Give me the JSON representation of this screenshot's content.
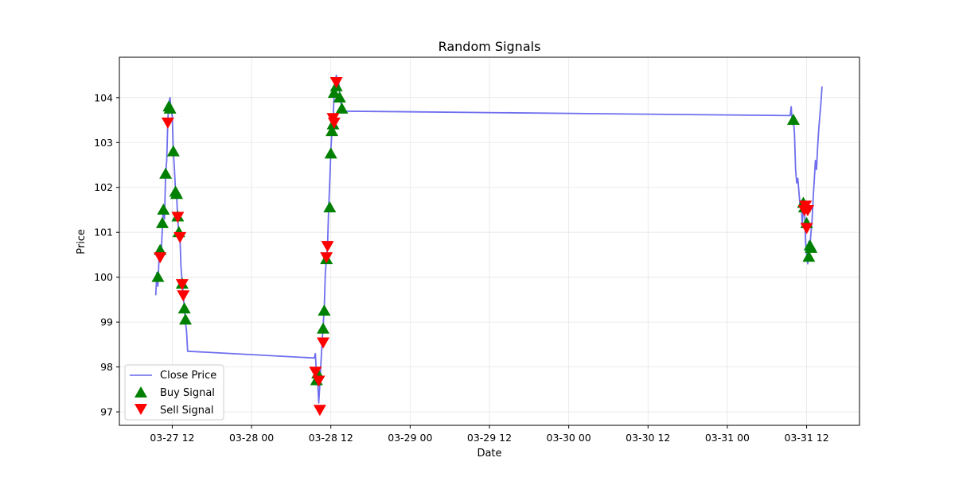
{
  "chart_data": {
    "type": "line",
    "title": "Random Signals",
    "xlabel": "Date",
    "ylabel": "Price",
    "x_ticks": [
      {
        "value": "2024-03-27 12:00",
        "label": "03-27 12"
      },
      {
        "value": "2024-03-28 00:00",
        "label": "03-28 00"
      },
      {
        "value": "2024-03-28 12:00",
        "label": "03-28 12"
      },
      {
        "value": "2024-03-29 00:00",
        "label": "03-29 00"
      },
      {
        "value": "2024-03-29 12:00",
        "label": "03-29 12"
      },
      {
        "value": "2024-03-30 00:00",
        "label": "03-30 00"
      },
      {
        "value": "2024-03-30 12:00",
        "label": "03-30 12"
      },
      {
        "value": "2024-03-31 00:00",
        "label": "03-31 00"
      },
      {
        "value": "2024-03-31 12:00",
        "label": "03-31 12"
      }
    ],
    "y_ticks": [
      97,
      98,
      99,
      100,
      101,
      102,
      103,
      104
    ],
    "xlim": [
      "2024-03-27 04:00",
      "2024-03-31 20:00"
    ],
    "ylim": [
      96.7,
      104.9
    ],
    "grid": true,
    "legend_position": "lower-left",
    "colors": {
      "close_price": "#6666ee",
      "buy_signal": "#008000",
      "sell_signal": "#ff0000"
    },
    "series": [
      {
        "name": "Close Price",
        "kind": "line",
        "points": [
          [
            "2024-03-27 09:30",
            99.6
          ],
          [
            "2024-03-27 09:40",
            100.1
          ],
          [
            "2024-03-27 09:50",
            99.8
          ],
          [
            "2024-03-27 10:00",
            100.4
          ],
          [
            "2024-03-27 10:10",
            100.6
          ],
          [
            "2024-03-27 10:20",
            100.5
          ],
          [
            "2024-03-27 10:30",
            101.1
          ],
          [
            "2024-03-27 10:40",
            101.6
          ],
          [
            "2024-03-27 10:50",
            101.3
          ],
          [
            "2024-03-27 11:00",
            102.3
          ],
          [
            "2024-03-27 11:10",
            102.6
          ],
          [
            "2024-03-27 11:20",
            103.5
          ],
          [
            "2024-03-27 11:30",
            103.9
          ],
          [
            "2024-03-27 11:40",
            104.0
          ],
          [
            "2024-03-27 11:50",
            103.7
          ],
          [
            "2024-03-27 12:00",
            103.6
          ],
          [
            "2024-03-27 12:10",
            102.8
          ],
          [
            "2024-03-27 12:20",
            102.4
          ],
          [
            "2024-03-27 12:30",
            101.9
          ],
          [
            "2024-03-27 12:40",
            101.8
          ],
          [
            "2024-03-27 12:50",
            101.3
          ],
          [
            "2024-03-27 13:00",
            101.0
          ],
          [
            "2024-03-27 13:10",
            100.9
          ],
          [
            "2024-03-27 13:20",
            100.2
          ],
          [
            "2024-03-27 13:30",
            99.9
          ],
          [
            "2024-03-27 13:40",
            99.6
          ],
          [
            "2024-03-27 13:50",
            99.3
          ],
          [
            "2024-03-27 14:00",
            99.0
          ],
          [
            "2024-03-27 14:10",
            98.8
          ],
          [
            "2024-03-27 14:20",
            98.35
          ],
          [
            "2024-03-28 09:30",
            98.2
          ],
          [
            "2024-03-28 09:40",
            98.3
          ],
          [
            "2024-03-28 09:50",
            97.8
          ],
          [
            "2024-03-28 10:00",
            97.7
          ],
          [
            "2024-03-28 10:10",
            97.2
          ],
          [
            "2024-03-28 10:20",
            97.6
          ],
          [
            "2024-03-28 10:30",
            98.1
          ],
          [
            "2024-03-28 10:40",
            98.5
          ],
          [
            "2024-03-28 10:50",
            98.9
          ],
          [
            "2024-03-28 11:00",
            99.3
          ],
          [
            "2024-03-28 11:10",
            100.1
          ],
          [
            "2024-03-28 11:20",
            100.4
          ],
          [
            "2024-03-28 11:30",
            100.7
          ],
          [
            "2024-03-28 11:40",
            101.5
          ],
          [
            "2024-03-28 11:50",
            102.1
          ],
          [
            "2024-03-28 12:00",
            102.8
          ],
          [
            "2024-03-28 12:10",
            103.3
          ],
          [
            "2024-03-28 12:20",
            103.5
          ],
          [
            "2024-03-28 12:30",
            104.1
          ],
          [
            "2024-03-28 12:40",
            104.2
          ],
          [
            "2024-03-28 12:50",
            104.5
          ],
          [
            "2024-03-28 13:00",
            104.3
          ],
          [
            "2024-03-28 13:10",
            104.4
          ],
          [
            "2024-03-28 13:20",
            104.1
          ],
          [
            "2024-03-28 13:30",
            103.9
          ],
          [
            "2024-03-28 13:40",
            103.75
          ],
          [
            "2024-03-28 13:50",
            103.7
          ],
          [
            "2024-03-31 09:30",
            103.6
          ],
          [
            "2024-03-31 09:40",
            103.8
          ],
          [
            "2024-03-31 09:50",
            103.4
          ],
          [
            "2024-03-31 10:00",
            103.5
          ],
          [
            "2024-03-31 10:10",
            103.2
          ],
          [
            "2024-03-31 10:20",
            102.4
          ],
          [
            "2024-03-31 10:30",
            102.1
          ],
          [
            "2024-03-31 10:40",
            102.2
          ],
          [
            "2024-03-31 10:50",
            101.9
          ],
          [
            "2024-03-31 11:00",
            101.6
          ],
          [
            "2024-03-31 11:10",
            101.7
          ],
          [
            "2024-03-31 11:20",
            101.2
          ],
          [
            "2024-03-31 11:30",
            101.5
          ],
          [
            "2024-03-31 11:40",
            101.6
          ],
          [
            "2024-03-31 11:50",
            100.8
          ],
          [
            "2024-03-31 12:00",
            100.5
          ],
          [
            "2024-03-31 12:10",
            100.3
          ],
          [
            "2024-03-31 12:20",
            100.8
          ],
          [
            "2024-03-31 12:30",
            100.7
          ],
          [
            "2024-03-31 12:40",
            101.0
          ],
          [
            "2024-03-31 12:50",
            101.3
          ],
          [
            "2024-03-31 13:00",
            101.8
          ],
          [
            "2024-03-31 13:10",
            102.2
          ],
          [
            "2024-03-31 13:20",
            102.6
          ],
          [
            "2024-03-31 13:30",
            102.4
          ],
          [
            "2024-03-31 13:40",
            102.9
          ],
          [
            "2024-03-31 13:50",
            103.3
          ],
          [
            "2024-03-31 14:00",
            103.6
          ],
          [
            "2024-03-31 14:10",
            103.9
          ],
          [
            "2024-03-31 14:20",
            104.25
          ]
        ]
      },
      {
        "name": "Buy Signal",
        "kind": "marker-up",
        "points": [
          [
            "2024-03-27 09:50",
            100.0
          ],
          [
            "2024-03-27 10:10",
            100.6
          ],
          [
            "2024-03-27 10:30",
            101.2
          ],
          [
            "2024-03-27 10:40",
            101.5
          ],
          [
            "2024-03-27 11:00",
            102.3
          ],
          [
            "2024-03-27 11:30",
            103.8
          ],
          [
            "2024-03-27 11:40",
            103.75
          ],
          [
            "2024-03-27 12:10",
            102.8
          ],
          [
            "2024-03-27 12:30",
            101.9
          ],
          [
            "2024-03-27 12:40",
            101.85
          ],
          [
            "2024-03-27 12:50",
            101.35
          ],
          [
            "2024-03-27 13:00",
            101.0
          ],
          [
            "2024-03-27 13:30",
            99.85
          ],
          [
            "2024-03-27 13:50",
            99.3
          ],
          [
            "2024-03-27 14:00",
            99.05
          ],
          [
            "2024-03-28 09:50",
            97.7
          ],
          [
            "2024-03-28 10:00",
            97.85
          ],
          [
            "2024-03-28 10:50",
            98.85
          ],
          [
            "2024-03-28 11:00",
            99.25
          ],
          [
            "2024-03-28 11:20",
            100.4
          ],
          [
            "2024-03-28 11:50",
            101.55
          ],
          [
            "2024-03-28 12:00",
            102.75
          ],
          [
            "2024-03-28 12:10",
            103.25
          ],
          [
            "2024-03-28 12:20",
            103.4
          ],
          [
            "2024-03-28 12:30",
            104.1
          ],
          [
            "2024-03-28 12:50",
            104.25
          ],
          [
            "2024-03-28 13:20",
            104.0
          ],
          [
            "2024-03-28 13:40",
            103.75
          ],
          [
            "2024-03-31 10:00",
            103.5
          ],
          [
            "2024-03-31 11:30",
            101.65
          ],
          [
            "2024-03-31 11:40",
            101.55
          ],
          [
            "2024-03-31 12:00",
            101.2
          ],
          [
            "2024-03-31 12:20",
            100.45
          ],
          [
            "2024-03-31 12:30",
            100.7
          ],
          [
            "2024-03-31 12:40",
            100.65
          ]
        ]
      },
      {
        "name": "Sell Signal",
        "kind": "marker-down",
        "points": [
          [
            "2024-03-27 10:10",
            100.45
          ],
          [
            "2024-03-27 11:20",
            103.45
          ],
          [
            "2024-03-27 12:50",
            101.35
          ],
          [
            "2024-03-27 13:10",
            100.9
          ],
          [
            "2024-03-27 13:30",
            99.85
          ],
          [
            "2024-03-27 13:40",
            99.6
          ],
          [
            "2024-03-28 09:40",
            97.9
          ],
          [
            "2024-03-28 10:10",
            97.7
          ],
          [
            "2024-03-28 10:20",
            97.05
          ],
          [
            "2024-03-28 10:50",
            98.55
          ],
          [
            "2024-03-28 11:20",
            100.45
          ],
          [
            "2024-03-28 11:30",
            100.7
          ],
          [
            "2024-03-28 12:20",
            103.55
          ],
          [
            "2024-03-28 12:30",
            103.45
          ],
          [
            "2024-03-28 12:50",
            104.35
          ],
          [
            "2024-03-31 11:40",
            101.5
          ],
          [
            "2024-03-31 11:50",
            101.6
          ],
          [
            "2024-03-31 12:00",
            101.1
          ],
          [
            "2024-03-31 12:10",
            101.5
          ]
        ]
      }
    ]
  }
}
